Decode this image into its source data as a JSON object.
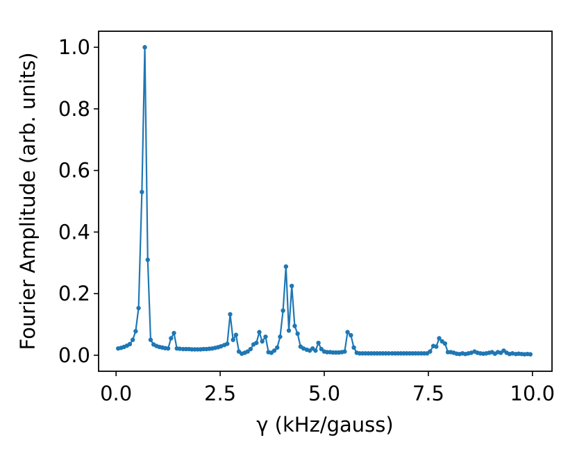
{
  "chart_data": {
    "type": "line",
    "xlabel": "γ (kHz/gauss)",
    "ylabel": "Fourier Amplitude (arb. units)",
    "color": "#1f77b4",
    "x": [
      0.05,
      0.12,
      0.19,
      0.26,
      0.33,
      0.4,
      0.47,
      0.54,
      0.62,
      0.69,
      0.76,
      0.83,
      0.9,
      0.97,
      1.04,
      1.11,
      1.18,
      1.25,
      1.32,
      1.39,
      1.46,
      1.53,
      1.61,
      1.68,
      1.75,
      1.82,
      1.89,
      1.96,
      2.03,
      2.1,
      2.17,
      2.24,
      2.31,
      2.38,
      2.45,
      2.52,
      2.6,
      2.67,
      2.74,
      2.81,
      2.88,
      2.95,
      3.02,
      3.09,
      3.16,
      3.23,
      3.3,
      3.37,
      3.44,
      3.51,
      3.59,
      3.66,
      3.73,
      3.8,
      3.87,
      3.94,
      4.01,
      4.08,
      4.15,
      4.22,
      4.29,
      4.36,
      4.43,
      4.5,
      4.58,
      4.65,
      4.72,
      4.79,
      4.86,
      4.93,
      5.0,
      5.07,
      5.14,
      5.21,
      5.28,
      5.35,
      5.42,
      5.49,
      5.56,
      5.64,
      5.71,
      5.78,
      5.85,
      5.92,
      5.99,
      6.06,
      6.13,
      6.2,
      6.27,
      6.34,
      6.41,
      6.48,
      6.55,
      6.63,
      6.7,
      6.77,
      6.84,
      6.91,
      6.98,
      7.05,
      7.12,
      7.19,
      7.26,
      7.33,
      7.4,
      7.47,
      7.54,
      7.62,
      7.69,
      7.76,
      7.83,
      7.9,
      7.97,
      8.04,
      8.11,
      8.18,
      8.25,
      8.32,
      8.39,
      8.46,
      8.53,
      8.61,
      8.68,
      8.75,
      8.82,
      8.89,
      8.96,
      9.03,
      9.1,
      9.17,
      9.24,
      9.31,
      9.38,
      9.45,
      9.52,
      9.6,
      9.67,
      9.74,
      9.81,
      9.88,
      9.95
    ],
    "values": [
      0.022,
      0.024,
      0.027,
      0.031,
      0.036,
      0.05,
      0.078,
      0.153,
      0.53,
      1.0,
      0.31,
      0.05,
      0.035,
      0.03,
      0.027,
      0.025,
      0.023,
      0.022,
      0.055,
      0.072,
      0.022,
      0.021,
      0.02,
      0.02,
      0.02,
      0.019,
      0.019,
      0.019,
      0.019,
      0.02,
      0.02,
      0.021,
      0.022,
      0.024,
      0.026,
      0.029,
      0.033,
      0.037,
      0.133,
      0.05,
      0.066,
      0.012,
      0.005,
      0.008,
      0.012,
      0.02,
      0.035,
      0.04,
      0.075,
      0.045,
      0.06,
      0.01,
      0.008,
      0.015,
      0.025,
      0.06,
      0.145,
      0.288,
      0.08,
      0.225,
      0.095,
      0.07,
      0.028,
      0.022,
      0.018,
      0.015,
      0.022,
      0.015,
      0.04,
      0.02,
      0.012,
      0.01,
      0.01,
      0.009,
      0.009,
      0.009,
      0.01,
      0.012,
      0.075,
      0.065,
      0.025,
      0.008,
      0.006,
      0.006,
      0.006,
      0.006,
      0.006,
      0.006,
      0.006,
      0.006,
      0.006,
      0.006,
      0.006,
      0.006,
      0.006,
      0.006,
      0.006,
      0.006,
      0.006,
      0.006,
      0.006,
      0.006,
      0.006,
      0.006,
      0.006,
      0.006,
      0.012,
      0.03,
      0.028,
      0.055,
      0.045,
      0.038,
      0.01,
      0.01,
      0.008,
      0.005,
      0.004,
      0.006,
      0.004,
      0.006,
      0.008,
      0.012,
      0.008,
      0.006,
      0.005,
      0.006,
      0.008,
      0.01,
      0.005,
      0.01,
      0.008,
      0.015,
      0.008,
      0.004,
      0.006,
      0.004,
      0.005,
      0.004,
      0.003,
      0.004,
      0.003
    ],
    "xlim": [
      -0.42,
      10.47
    ],
    "ylim": [
      -0.052,
      1.052
    ],
    "xticks": [
      {
        "value": 0,
        "label": "0.0"
      },
      2.5,
      {
        "value": 5,
        "label": "5.0"
      },
      7.5,
      {
        "value": 10,
        "label": "10.0"
      }
    ],
    "yticks": [
      {
        "value": 0,
        "label": "0.0"
      },
      0.2,
      0.4,
      0.6,
      0.8,
      {
        "value": 1,
        "label": "1.0"
      }
    ]
  }
}
